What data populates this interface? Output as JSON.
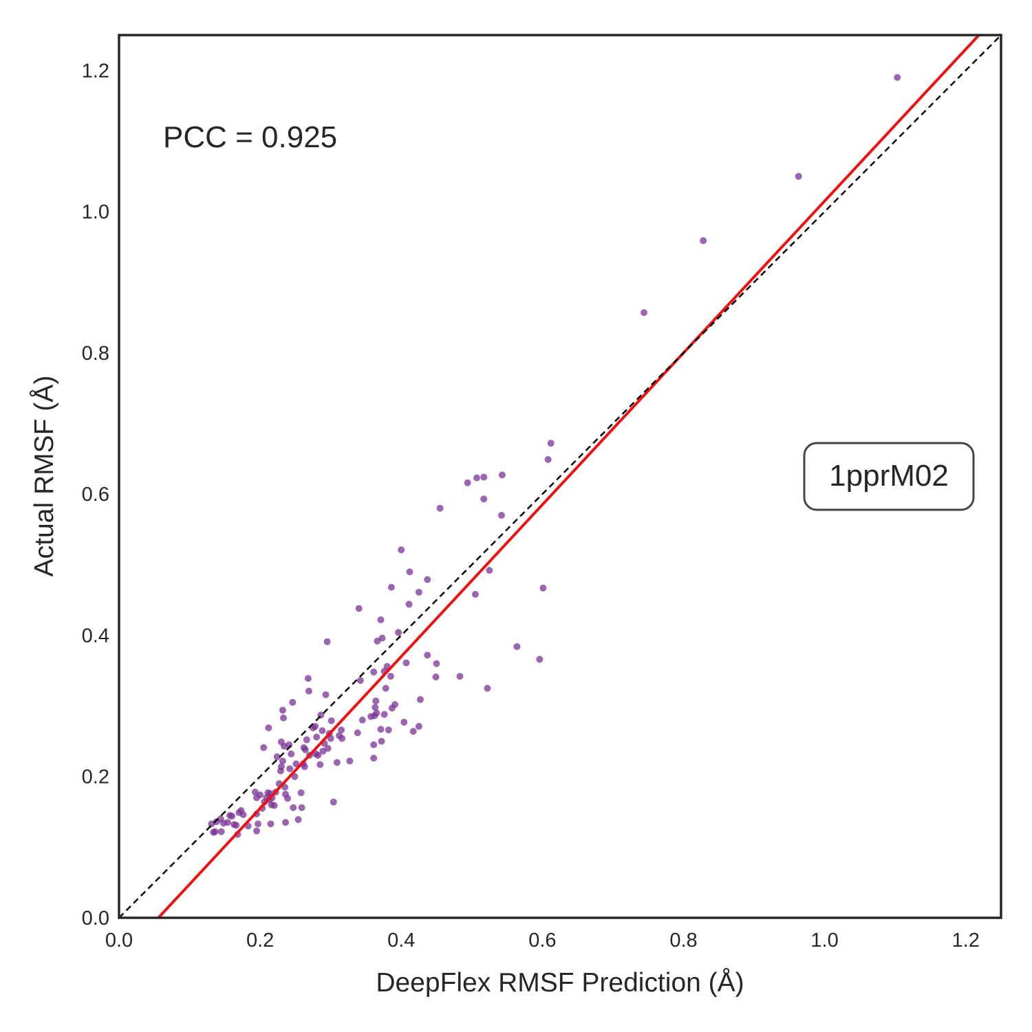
{
  "chart_data": {
    "type": "scatter",
    "title": "",
    "xlabel": "DeepFlex RMSF Prediction (Å)",
    "ylabel": "Actual RMSF (Å)",
    "xlim": [
      0.0,
      1.25
    ],
    "ylim": [
      0.0,
      1.25
    ],
    "xticks": [
      "0.0",
      "0.2",
      "0.4",
      "0.6",
      "0.8",
      "1.0",
      "1.2"
    ],
    "yticks": [
      "0.0",
      "0.2",
      "0.4",
      "0.6",
      "0.8",
      "1.0",
      "1.2"
    ],
    "grid": false,
    "annotation": "PCC = 0.925",
    "label_box": "1pprM02",
    "colors": {
      "points": "#7b3294",
      "fit_line": "#ee1111",
      "identity_line": "#000000",
      "frame": "#262626"
    },
    "identity_line": {
      "slope": 1.0,
      "intercept": 0.0
    },
    "fit_line": {
      "slope": 1.075,
      "intercept": -0.06
    },
    "points": [
      [
        1.103,
        1.19
      ],
      [
        0.963,
        1.05
      ],
      [
        0.828,
        0.959
      ],
      [
        0.744,
        0.857
      ],
      [
        0.612,
        0.672
      ],
      [
        0.608,
        0.649
      ],
      [
        0.601,
        0.467
      ],
      [
        0.596,
        0.366
      ],
      [
        0.564,
        0.384
      ],
      [
        0.543,
        0.627
      ],
      [
        0.542,
        0.57
      ],
      [
        0.522,
        0.325
      ],
      [
        0.525,
        0.492
      ],
      [
        0.517,
        0.593
      ],
      [
        0.517,
        0.624
      ],
      [
        0.507,
        0.623
      ],
      [
        0.505,
        0.458
      ],
      [
        0.494,
        0.616
      ],
      [
        0.483,
        0.342
      ],
      [
        0.455,
        0.58
      ],
      [
        0.45,
        0.36
      ],
      [
        0.449,
        0.341
      ],
      [
        0.437,
        0.372
      ],
      [
        0.437,
        0.479
      ],
      [
        0.425,
        0.461
      ],
      [
        0.427,
        0.309
      ],
      [
        0.425,
        0.271
      ],
      [
        0.417,
        0.264
      ],
      [
        0.411,
        0.444
      ],
      [
        0.412,
        0.49
      ],
      [
        0.407,
        0.361
      ],
      [
        0.404,
        0.277
      ],
      [
        0.4,
        0.521
      ],
      [
        0.396,
        0.404
      ],
      [
        0.391,
        0.302
      ],
      [
        0.387,
        0.297
      ],
      [
        0.386,
        0.468
      ],
      [
        0.385,
        0.342
      ],
      [
        0.382,
        0.266
      ],
      [
        0.38,
        0.356
      ],
      [
        0.378,
        0.325
      ],
      [
        0.376,
        0.349
      ],
      [
        0.376,
        0.288
      ],
      [
        0.373,
        0.396
      ],
      [
        0.371,
        0.422
      ],
      [
        0.372,
        0.25
      ],
      [
        0.371,
        0.267
      ],
      [
        0.366,
        0.392
      ],
      [
        0.365,
        0.29
      ],
      [
        0.364,
        0.307
      ],
      [
        0.363,
        0.298
      ],
      [
        0.361,
        0.348
      ],
      [
        0.362,
        0.286
      ],
      [
        0.361,
        0.226
      ],
      [
        0.361,
        0.245
      ],
      [
        0.357,
        0.285
      ],
      [
        0.345,
        0.28
      ],
      [
        0.34,
        0.438
      ],
      [
        0.342,
        0.336
      ],
      [
        0.338,
        0.262
      ],
      [
        0.327,
        0.222
      ],
      [
        0.316,
        0.254
      ],
      [
        0.315,
        0.266
      ],
      [
        0.312,
        0.258
      ],
      [
        0.309,
        0.22
      ],
      [
        0.304,
        0.164
      ],
      [
        0.301,
        0.279
      ],
      [
        0.3,
        0.254
      ],
      [
        0.298,
        0.261
      ],
      [
        0.296,
        0.24
      ],
      [
        0.293,
        0.316
      ],
      [
        0.295,
        0.391
      ],
      [
        0.291,
        0.247
      ],
      [
        0.289,
        0.236
      ],
      [
        0.288,
        0.265
      ],
      [
        0.286,
        0.287
      ],
      [
        0.285,
        0.217
      ],
      [
        0.282,
        0.23
      ],
      [
        0.28,
        0.256
      ],
      [
        0.279,
        0.232
      ],
      [
        0.278,
        0.271
      ],
      [
        0.275,
        0.269
      ],
      [
        0.27,
        0.23
      ],
      [
        0.269,
        0.321
      ],
      [
        0.268,
        0.339
      ],
      [
        0.266,
        0.252
      ],
      [
        0.264,
        0.238
      ],
      [
        0.263,
        0.214
      ],
      [
        0.262,
        0.241
      ],
      [
        0.261,
        0.218
      ],
      [
        0.259,
        0.156
      ],
      [
        0.258,
        0.177
      ],
      [
        0.254,
        0.139
      ],
      [
        0.251,
        0.218
      ],
      [
        0.249,
        0.2
      ],
      [
        0.247,
        0.156
      ],
      [
        0.246,
        0.305
      ],
      [
        0.244,
        0.232
      ],
      [
        0.242,
        0.211
      ],
      [
        0.241,
        0.245
      ],
      [
        0.239,
        0.169
      ],
      [
        0.236,
        0.175
      ],
      [
        0.236,
        0.135
      ],
      [
        0.235,
        0.185
      ],
      [
        0.234,
        0.243
      ],
      [
        0.233,
        0.283
      ],
      [
        0.232,
        0.294
      ],
      [
        0.232,
        0.222
      ],
      [
        0.23,
        0.214
      ],
      [
        0.23,
        0.249
      ],
      [
        0.229,
        0.208
      ],
      [
        0.227,
        0.19
      ],
      [
        0.224,
        0.228
      ],
      [
        0.222,
        0.178
      ],
      [
        0.22,
        0.159
      ],
      [
        0.217,
        0.17
      ],
      [
        0.216,
        0.16
      ],
      [
        0.215,
        0.133
      ],
      [
        0.214,
        0.176
      ],
      [
        0.213,
        0.167
      ],
      [
        0.212,
        0.269
      ],
      [
        0.211,
        0.177
      ],
      [
        0.209,
        0.17
      ],
      [
        0.206,
        0.164
      ],
      [
        0.205,
        0.241
      ],
      [
        0.203,
        0.155
      ],
      [
        0.2,
        0.174
      ],
      [
        0.197,
        0.133
      ],
      [
        0.195,
        0.123
      ],
      [
        0.195,
        0.147
      ],
      [
        0.195,
        0.17
      ],
      [
        0.193,
        0.178
      ],
      [
        0.183,
        0.13
      ],
      [
        0.176,
        0.146
      ],
      [
        0.173,
        0.152
      ],
      [
        0.17,
        0.149
      ],
      [
        0.168,
        0.118
      ],
      [
        0.166,
        0.131
      ],
      [
        0.163,
        0.132
      ],
      [
        0.16,
        0.144
      ],
      [
        0.157,
        0.145
      ],
      [
        0.154,
        0.135
      ],
      [
        0.148,
        0.134
      ],
      [
        0.145,
        0.122
      ],
      [
        0.144,
        0.14
      ],
      [
        0.138,
        0.136
      ],
      [
        0.136,
        0.122
      ],
      [
        0.134,
        0.121
      ],
      [
        0.131,
        0.133
      ]
    ]
  }
}
